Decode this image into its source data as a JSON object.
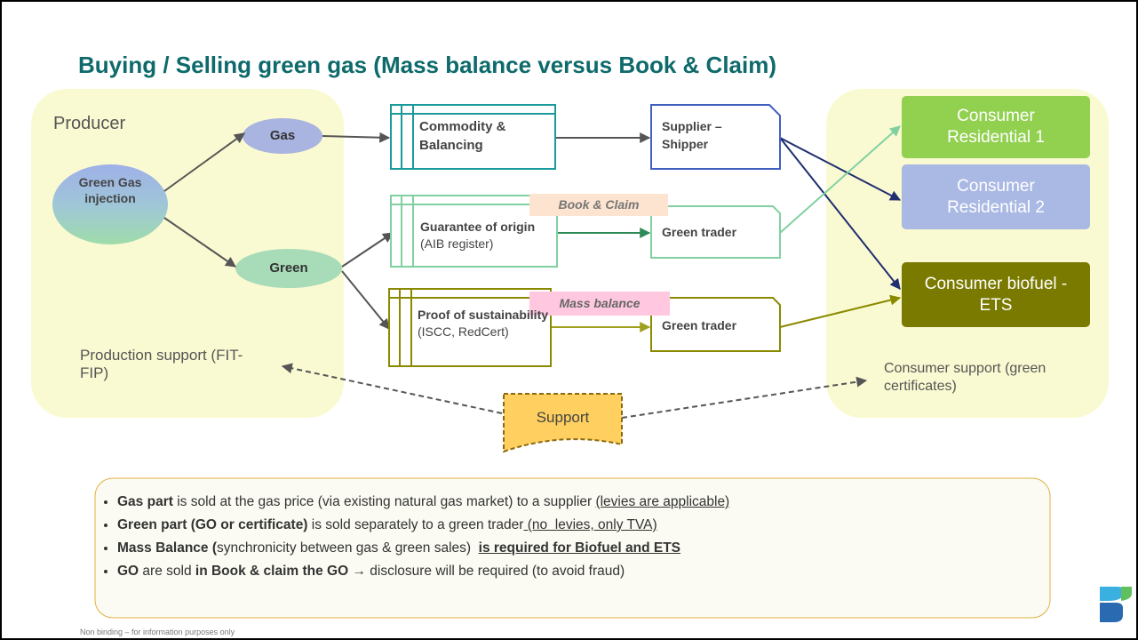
{
  "title": "Buying / Selling green gas (Mass balance versus Book & Claim)",
  "producer": {
    "label": "Producer",
    "support": "Production support (FIT-FIP)"
  },
  "consumer_area": {
    "support": "Consumer support (green certificates)"
  },
  "nodes": {
    "injection": "Green Gas injection",
    "gas": "Gas",
    "green": "Green"
  },
  "boxes": {
    "commodity": "Commodity & Balancing",
    "guarantee": {
      "bold": "Guarantee of origin",
      "normal": " (AIB register)"
    },
    "proof": {
      "bold": "Proof of sustainability",
      "normal": "(ISCC, RedCert)"
    }
  },
  "tags": {
    "book_claim": "Book & Claim",
    "mass_balance": "Mass balance"
  },
  "traders": {
    "supplier": "Supplier – Shipper",
    "green_trader_1": "Green trader",
    "green_trader_2": "Green trader"
  },
  "consumers": [
    "Consumer Residential 1",
    "Consumer Residential 2",
    "Consumer biofuel - ETS"
  ],
  "support": "Support",
  "bullets": [
    [
      {
        "text": "Gas part",
        "bold": true
      },
      {
        "text": " is sold at the gas price (via existing natural gas market) to a supplier "
      },
      {
        "text": "(levies are applicable)",
        "underline": true
      }
    ],
    [
      {
        "text": "Green part (GO or certificate)",
        "bold": true
      },
      {
        "text": " is sold separately to a green trader"
      },
      {
        "text": " (no  levies, only TVA)",
        "underline": true
      }
    ],
    [
      {
        "text": "Mass Balance (",
        "bold": true
      },
      {
        "text": "synchronicity between gas & green sales)  "
      },
      {
        "text": "is required for Biofuel and ETS",
        "bold": true,
        "underline": true
      }
    ],
    [
      {
        "text": "GO",
        "bold": true
      },
      {
        "text": " are sold "
      },
      {
        "text": "in Book & claim the GO →",
        "bold": true
      },
      {
        "text": " disclosure will be required (to avoid fraud)"
      }
    ]
  ],
  "footer": "Non binding – for information purposes only"
}
